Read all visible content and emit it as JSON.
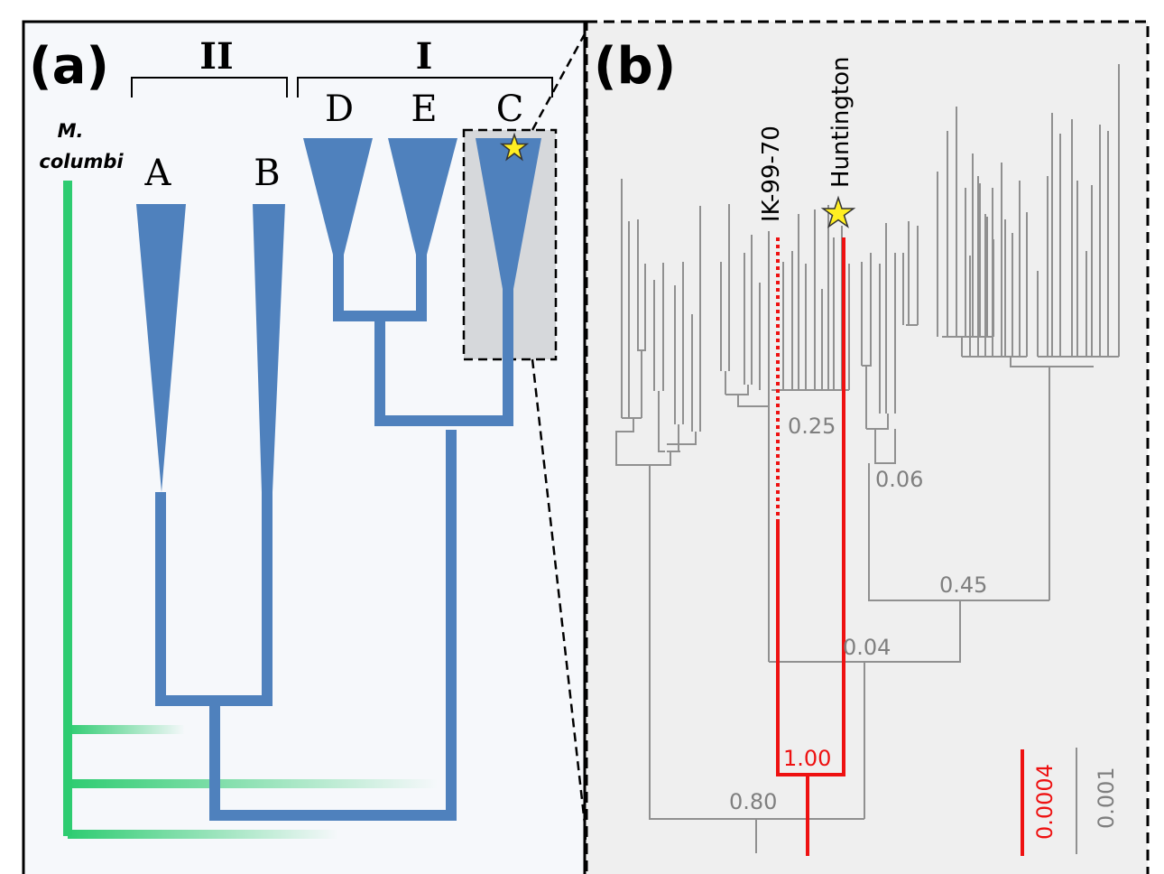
{
  "panel_a": {
    "label": "(a)",
    "groups": [
      {
        "id": "II",
        "label": "II"
      },
      {
        "id": "I",
        "label": "I"
      }
    ],
    "clades": [
      {
        "id": "A",
        "label": "A"
      },
      {
        "id": "B",
        "label": "B"
      },
      {
        "id": "D",
        "label": "D"
      },
      {
        "id": "E",
        "label": "E"
      },
      {
        "id": "C",
        "label": "C"
      }
    ],
    "outgroup": {
      "line1": "M.",
      "line2": "columbi"
    },
    "colors": {
      "tree": "#4f81bd",
      "outgroup": "#2ecc71",
      "highlight_box": "#d6d8db",
      "background": "#f6f8fb"
    }
  },
  "panel_b": {
    "label": "(b)",
    "tips": {
      "ik": {
        "label": "IK-99-70"
      },
      "huntington": {
        "label": "Huntington"
      }
    },
    "node_support": [
      {
        "id": "s025",
        "value": "0.25"
      },
      {
        "id": "s006",
        "value": "0.06"
      },
      {
        "id": "s045",
        "value": "0.45"
      },
      {
        "id": "s004",
        "value": "0.04"
      },
      {
        "id": "s100",
        "value": "1.00"
      },
      {
        "id": "s080",
        "value": "0.80"
      }
    ],
    "scale_bars": {
      "red": "0.0004",
      "grey": "0.001"
    },
    "colors": {
      "tree": "#909090",
      "highlight": "#ee1111",
      "background": "#efefef",
      "star": "#ffee22"
    }
  }
}
